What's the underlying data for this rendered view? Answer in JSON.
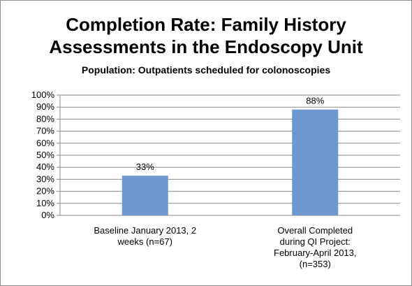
{
  "chart_data": {
    "type": "bar",
    "title_line1": "Completion Rate: Family History",
    "title_line2": "Assessments in the Endoscopy Unit",
    "subtitle": "Population:  Outpatients scheduled for colonoscopies",
    "categories": [
      "Baseline January 2013, 2 weeks (n=67)",
      "Overall Completed during QI Project: February-April 2013, (n=353)"
    ],
    "category_lines": [
      [
        "Baseline January 2013, 2",
        "weeks (n=67)"
      ],
      [
        "Overall Completed",
        "during QI Project:",
        "February-April 2013,",
        "(n=353)"
      ]
    ],
    "values": [
      33,
      88
    ],
    "data_labels": [
      "33%",
      "88%"
    ],
    "y_ticks": [
      "0%",
      "10%",
      "20%",
      "30%",
      "40%",
      "50%",
      "60%",
      "70%",
      "80%",
      "90%",
      "100%"
    ],
    "ylim": [
      0,
      100
    ],
    "grid": true,
    "legend": "none",
    "bar_color": "#6e97cf"
  }
}
